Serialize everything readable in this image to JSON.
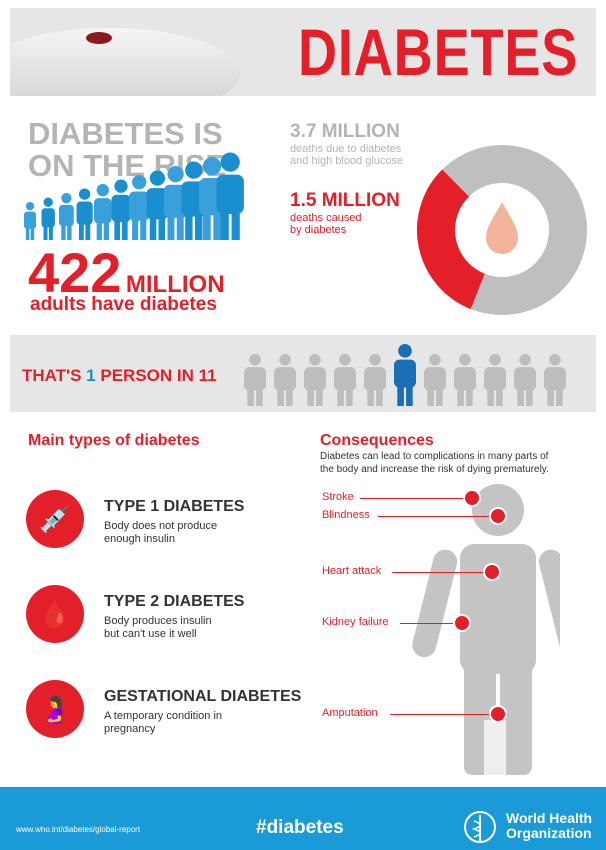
{
  "header": {
    "title": "DIABETES"
  },
  "rise": {
    "headline_line1": "DIABETES IS",
    "headline_line2": "ON THE RISE",
    "number": "422",
    "unit": "MILLION",
    "caption": "adults have diabetes"
  },
  "deaths": {
    "total_value": "3.7 MILLION",
    "total_caption_line1": "deaths due to diabetes",
    "total_caption_line2": "and high blood glucose",
    "diabetes_value": "1.5 MILLION",
    "diabetes_caption_line1": "deaths caused",
    "diabetes_caption_line2": "by diabetes",
    "donut_share": 0.405,
    "colors": {
      "total": "#bfbfbf",
      "diabetes": "#e3202a",
      "drop": "#f2b59c"
    }
  },
  "ratio": {
    "prefix": "THAT'S ",
    "highlight": "1",
    "suffix": " PERSON IN 11",
    "figures": 11,
    "highlighted_index": 5
  },
  "types": {
    "heading": "Main types of diabetes",
    "items": [
      {
        "icon": "insulin-syringe-icon",
        "name": "TYPE 1 DIABETES",
        "desc_line1": "Body does not produce",
        "desc_line2": "enough insulin"
      },
      {
        "icon": "glucose-drop-icon",
        "name": "TYPE 2 DIABETES",
        "desc_line1": "Body produces insulin",
        "desc_line2": "but can't use it well"
      },
      {
        "icon": "pregnancy-icon",
        "name": "GESTATIONAL DIABETES",
        "desc_line1": "A temporary condition in",
        "desc_line2": "pregnancy"
      }
    ]
  },
  "consequences": {
    "heading": "Consequences",
    "intro_line1": "Diabetes can lead to complications in many parts of",
    "intro_line2": "the body and increase the risk of dying prematurely.",
    "items": [
      "Stroke",
      "Blindness",
      "Heart attack",
      "Kidney failure",
      "Amputation"
    ]
  },
  "footer": {
    "url": "www.who.int/diabetes/global-report",
    "hashtag": "#diabetes",
    "org_line1": "World Health",
    "org_line2": "Organization"
  },
  "colors": {
    "red": "#e3202a",
    "blue": "#1a8fd0",
    "footer": "#1a9ad6",
    "gray": "#b4b4b4"
  }
}
